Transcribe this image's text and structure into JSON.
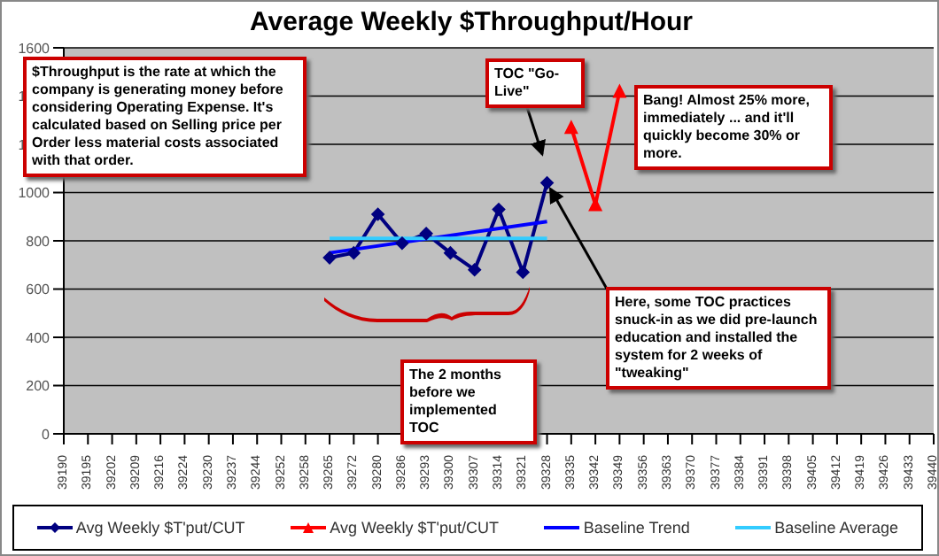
{
  "chart_data": {
    "type": "line",
    "title": "Average Weekly $Throughput/Hour",
    "categories": [
      "39190",
      "39195",
      "39202",
      "39209",
      "39216",
      "39224",
      "39230",
      "39237",
      "39244",
      "39252",
      "39258",
      "39265",
      "39272",
      "39280",
      "39286",
      "39293",
      "39300",
      "39307",
      "39314",
      "39321",
      "39328",
      "39335",
      "39342",
      "39349",
      "39356",
      "39363",
      "39370",
      "39377",
      "39384",
      "39391",
      "39398",
      "39405",
      "39412",
      "39419",
      "39426",
      "39433",
      "39440"
    ],
    "series": [
      {
        "name": "Avg Weekly $T'put/CUT",
        "color": "#000080",
        "marker": "diamond",
        "values": [
          null,
          null,
          null,
          null,
          null,
          null,
          null,
          null,
          null,
          null,
          null,
          730,
          750,
          910,
          790,
          830,
          750,
          680,
          930,
          670,
          1040,
          null,
          null,
          null,
          null,
          null,
          null,
          null,
          null,
          null,
          null,
          null,
          null,
          null,
          null,
          null,
          null
        ]
      },
      {
        "name": "Avg Weekly $T'put/CUT",
        "color": "#ff0000",
        "marker": "triangle",
        "values": [
          null,
          null,
          null,
          null,
          null,
          null,
          null,
          null,
          null,
          null,
          null,
          null,
          null,
          null,
          null,
          null,
          null,
          null,
          null,
          null,
          null,
          1270,
          950,
          1420,
          null,
          null,
          null,
          null,
          null,
          null,
          null,
          null,
          null,
          null,
          null,
          null,
          null
        ]
      },
      {
        "name": "Baseline Trend",
        "color": "#0000ff",
        "marker": "none",
        "values": [
          null,
          null,
          null,
          null,
          null,
          null,
          null,
          null,
          null,
          null,
          null,
          750,
          null,
          null,
          null,
          null,
          null,
          null,
          null,
          null,
          880,
          null,
          null,
          null,
          null,
          null,
          null,
          null,
          null,
          null,
          null,
          null,
          null,
          null,
          null,
          null,
          null
        ]
      },
      {
        "name": "Baseline Average",
        "color": "#33ccff",
        "marker": "none",
        "values": [
          null,
          null,
          null,
          null,
          null,
          null,
          null,
          null,
          null,
          null,
          null,
          810,
          810,
          810,
          810,
          810,
          810,
          810,
          810,
          810,
          810,
          null,
          null,
          null,
          null,
          null,
          null,
          null,
          null,
          null,
          null,
          null,
          null,
          null,
          null,
          null,
          null
        ]
      }
    ],
    "ylim": [
      0,
      1600
    ],
    "yticks": [
      0,
      200,
      400,
      600,
      800,
      1000,
      1200,
      1400,
      1600
    ],
    "grid": "y",
    "legend": "bottom",
    "annotations": [
      "$Throughput is the rate at which the company is generating money before considering Operating Expense. It's calculated based on Selling price per Order less material costs associated with that order.",
      "TOC \"Go-Live\"",
      "Bang! Almost 25% more, immediately ... and it'll quickly become 30% or more.",
      {
        "text": "Here, some TOC practices snuck-in as we did pre-launch education and installed the system for 2 weeks of \"tweaking\"",
        "x": "39328",
        "y": 1040
      },
      "The 2 months before we implemented TOC"
    ]
  }
}
